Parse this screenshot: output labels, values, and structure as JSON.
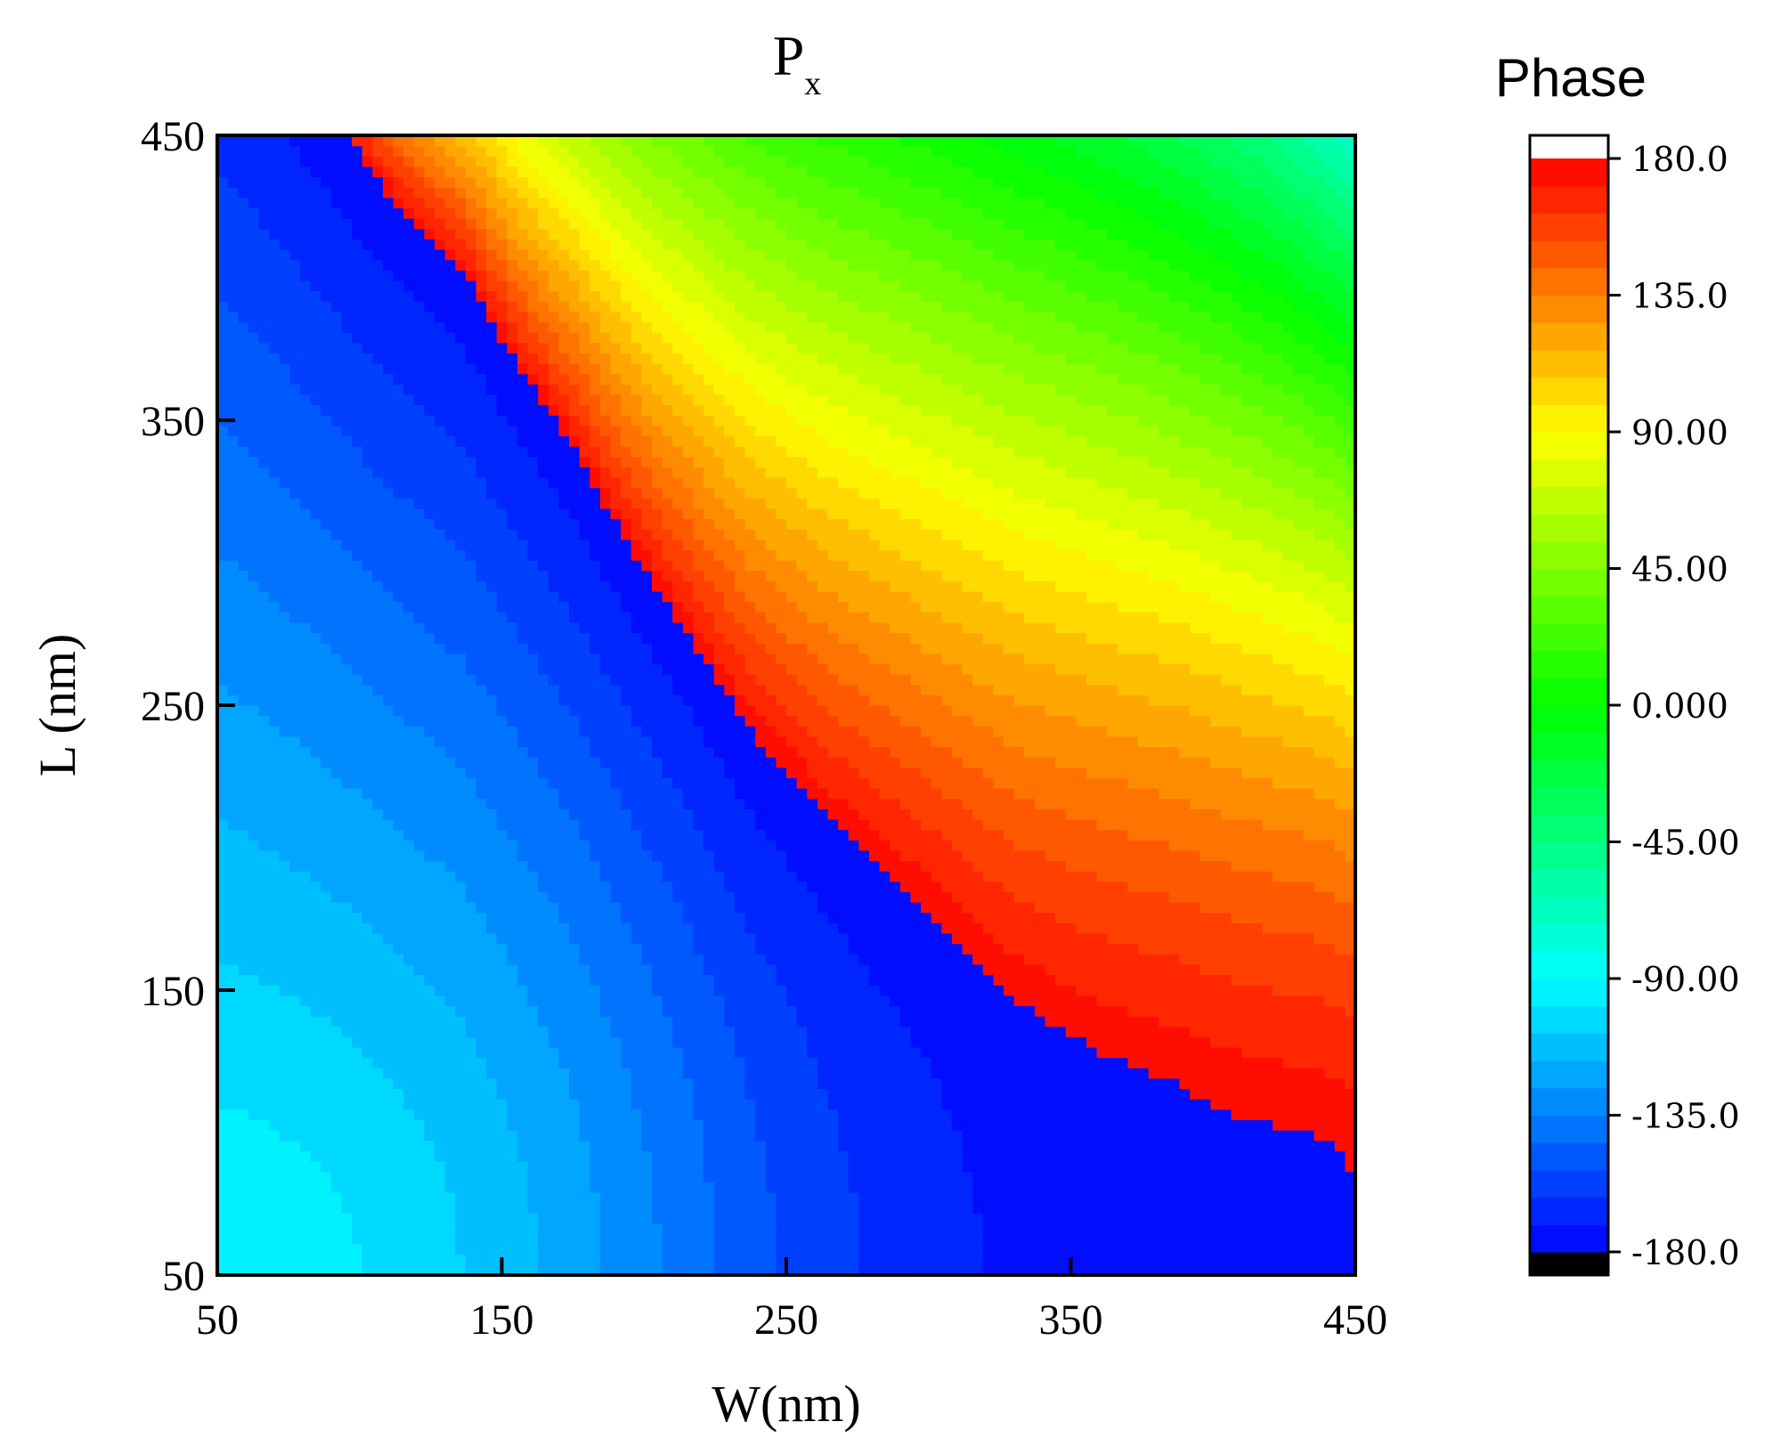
{
  "chart_data": {
    "type": "heatmap",
    "title": "P",
    "title_subscript": "x",
    "xlabel": "W(nm)",
    "ylabel": "L (nm)",
    "xlim": [
      50,
      450
    ],
    "ylim": [
      50,
      450
    ],
    "xticks": [
      "50",
      "150",
      "250",
      "350",
      "450"
    ],
    "yticks": [
      "50",
      "150",
      "250",
      "350",
      "450"
    ],
    "colorbar": {
      "title": "Phase",
      "range": [
        -180,
        180
      ],
      "ticks": [
        {
          "value": 180,
          "label": "180.0"
        },
        {
          "value": 135,
          "label": "135.0"
        },
        {
          "value": 90,
          "label": "90.00"
        },
        {
          "value": 45,
          "label": "45.00"
        },
        {
          "value": 0,
          "label": "0.000"
        },
        {
          "value": -45,
          "label": "-45.00"
        },
        {
          "value": -90,
          "label": "-90.00"
        },
        {
          "value": -135,
          "label": "-135.0"
        },
        {
          "value": -180,
          "label": "-180.0"
        }
      ],
      "levels": 40,
      "over_color": "#ffffff",
      "under_color": "#000000"
    },
    "wrap_boundary": [
      [
        95,
        450
      ],
      [
        110,
        430
      ],
      [
        138,
        400
      ],
      [
        155,
        370
      ],
      [
        175,
        340
      ],
      [
        195,
        305
      ],
      [
        215,
        275
      ],
      [
        238,
        240
      ],
      [
        265,
        210
      ],
      [
        300,
        178
      ],
      [
        332,
        145
      ],
      [
        360,
        128
      ],
      [
        385,
        118
      ],
      [
        410,
        105
      ],
      [
        440,
        98
      ],
      [
        450,
        85
      ]
    ],
    "colors": {
      "red": "#ff0000",
      "yellow": "#ffff00",
      "green": "#00ff00",
      "cyan": "#00ffff",
      "blue": "#0000ff"
    }
  }
}
